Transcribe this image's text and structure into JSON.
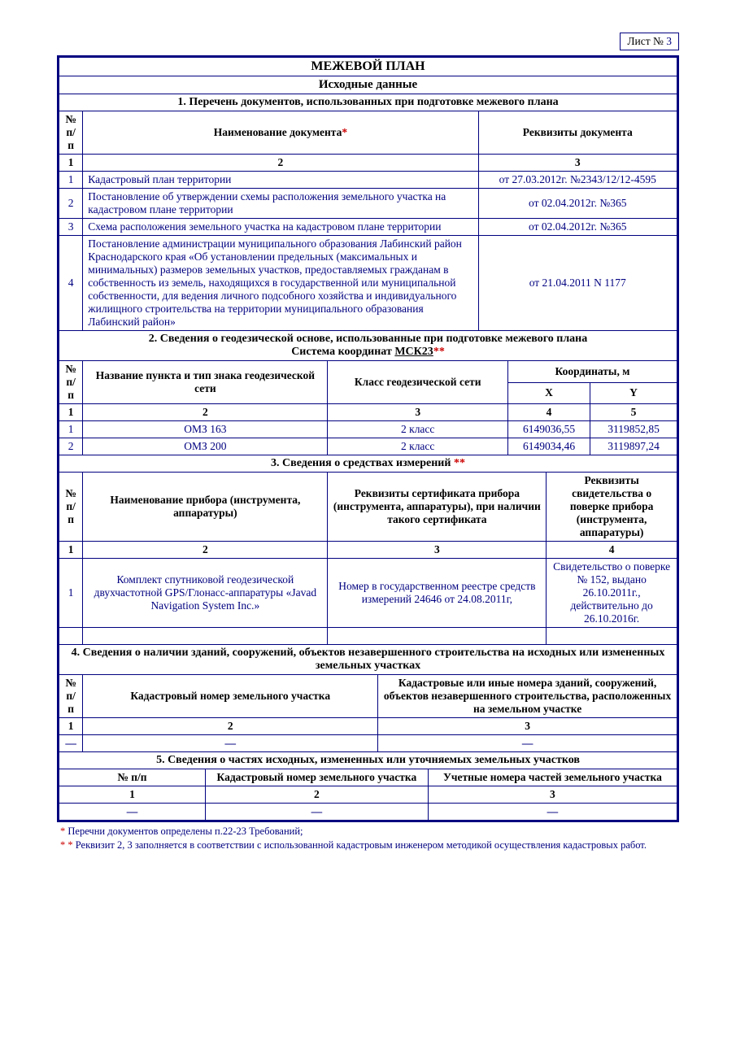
{
  "colors": {
    "border": "#000080",
    "text": "#000000",
    "blue": "#000080",
    "star": "#cc0000"
  },
  "sheet": {
    "label": "Лист №",
    "num": "3"
  },
  "title": "МЕЖЕВОЙ ПЛАН",
  "subtitle": "Исходные данные",
  "s1": {
    "heading": "1. Перечень документов, использованных при подготовке межевого плана",
    "h_num": "№ п/п",
    "h_name": "Наименование документа",
    "h_name_star": "*",
    "h_req": "Реквизиты документа",
    "cn1": "1",
    "cn2": "2",
    "cn3": "3",
    "rows": [
      {
        "n": "1",
        "name": "Кадастровый план территории",
        "req": "от 27.03.2012г. №2343/12/12-4595"
      },
      {
        "n": "2",
        "name": "Постановление об утверждении схемы расположения земельного участка на кадастровом плане территории",
        "req": "от 02.04.2012г. №365"
      },
      {
        "n": "3",
        "name": "Схема расположения земельного участка на кадастровом плане территории",
        "req": "от 02.04.2012г. №365"
      },
      {
        "n": "4",
        "name": "Постановление администрации муниципального образования Лабинский район Краснодарского края «Об установлении предельных (максимальных и минимальных) размеров земельных участков, предоставляемых гражданам в собственность из земель, находящихся в государственной или муниципальной собственности, для ведения личного подсобного хозяйства и индивидуального жилищного строительства на территории муниципального образования Лабинский район»",
        "req": "от 21.04.2011 N 1177"
      }
    ]
  },
  "s2": {
    "heading": "2. Сведения о геодезической основе, использованные при подготовке межевого плана",
    "coord_label": "Система координат ",
    "coord_sys": "МСК23",
    "coord_star": "**",
    "h_num": "№ п/п",
    "h_name": "Название пункта и тип знака геодезической сети",
    "h_class": "Класс геодезической сети",
    "h_coords": "Координаты, м",
    "h_x": "X",
    "h_y": "Y",
    "cn1": "1",
    "cn2": "2",
    "cn3": "3",
    "cn4": "4",
    "cn5": "5",
    "rows": [
      {
        "n": "1",
        "name": "ОМЗ 163",
        "cls": "2 класс",
        "x": "6149036,55",
        "y": "3119852,85"
      },
      {
        "n": "2",
        "name": "ОМЗ 200",
        "cls": "2 класс",
        "x": "6149034,46",
        "y": "3119897,24"
      }
    ]
  },
  "s3": {
    "heading": "3. Сведения о средствах измерений ",
    "heading_star": "**",
    "h_num": "№ п/п",
    "h_name": "Наименование прибора (инструмента, аппаратуры)",
    "h_cert": "Реквизиты сертификата прибора (инструмента, аппаратуры), при наличии такого сертификата",
    "h_verify": "Реквизиты свидетельства о поверке прибора (инструмента, аппаратуры)",
    "cn1": "1",
    "cn2": "2",
    "cn3": "3",
    "cn4": "4",
    "rows": [
      {
        "n": "1",
        "name": "Комплект спутниковой геодезической двухчастотной GPS/Глонасс-аппаратуры «Javad Navigation System Inc.»",
        "cert": "Номер в государственном реестре средств измерений 24646 от 24.08.2011г,",
        "verify": "Свидетельство о поверке № 152, выдано 26.10.2011г., действительно до 26.10.2016г."
      }
    ],
    "blank_row": true
  },
  "s4": {
    "heading": "4. Сведения о наличии зданий, сооружений, объектов незавершенного строительства на исходных или измененных земельных участках",
    "h_num": "№ п/п",
    "h_cad": "Кадастровый номер земельного участка",
    "h_obj": "Кадастровые или иные номера зданий, сооружений, объектов незавершенного строительства, расположенных на земельном участке",
    "cn1": "1",
    "cn2": "2",
    "cn3": "3",
    "dash": "—"
  },
  "s5": {
    "heading": "5. Сведения о частях исходных, измененных или уточняемых земельных участков",
    "h_num": "№ п/п",
    "h_cad": "Кадастровый номер земельного участка",
    "h_acc": "Учетные номера частей земельного участка",
    "cn1": "1",
    "cn2": "2",
    "cn3": "3",
    "dash": "—"
  },
  "footnotes": {
    "f1_star": "* ",
    "f1": "Перечни документов определены п.22-23 Требований;",
    "f2_star": "* * ",
    "f2": "Реквизит 2, 3 заполняется в соответствии с использованной кадастровым инженером методикой осуществления кадастровых работ."
  }
}
